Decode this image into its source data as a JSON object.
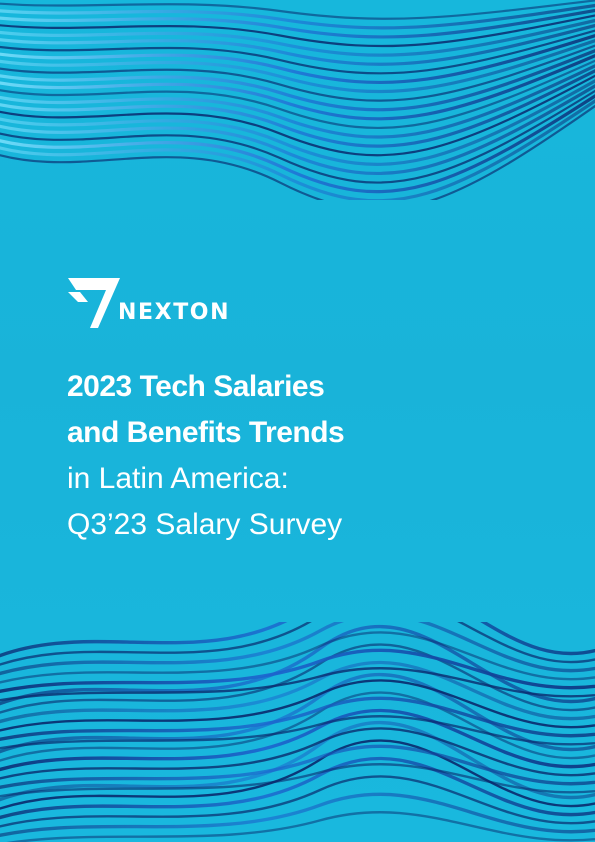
{
  "brand": {
    "name": "NEXTON"
  },
  "cover": {
    "title_lines": [
      "2023 Tech Salaries",
      "and Benefits Trends"
    ],
    "subtitle_lines": [
      "in Latin America:",
      "Q3’23 Salary Survey"
    ]
  },
  "colors": {
    "background": "#19b3d9",
    "text": "#ffffff",
    "wave_dark": "#0a2a6e",
    "wave_light": "#7fe8ff"
  }
}
